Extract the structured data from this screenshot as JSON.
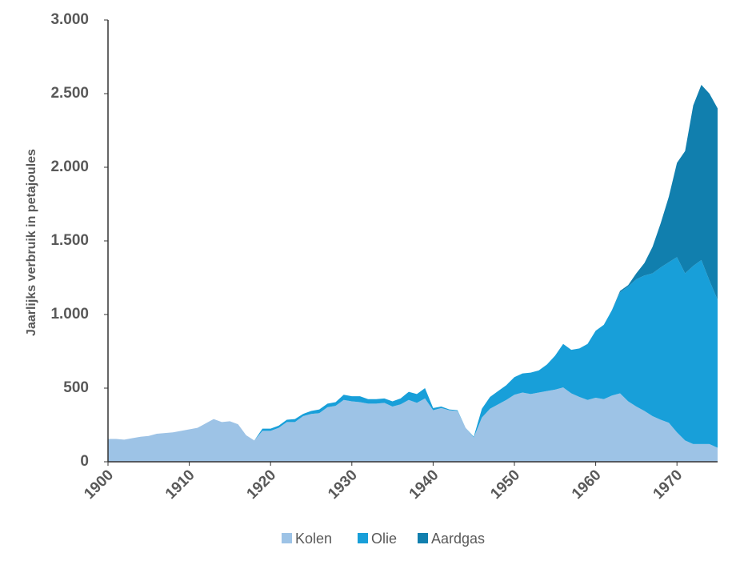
{
  "chart_data": {
    "type": "stacked_area",
    "ylabel": "Jaarlijks verbruik in petajoules",
    "x": [
      1900,
      1901,
      1902,
      1903,
      1904,
      1905,
      1906,
      1907,
      1908,
      1909,
      1910,
      1911,
      1912,
      1913,
      1914,
      1915,
      1916,
      1917,
      1918,
      1919,
      1920,
      1921,
      1922,
      1923,
      1924,
      1925,
      1926,
      1927,
      1928,
      1929,
      1930,
      1931,
      1932,
      1933,
      1934,
      1935,
      1936,
      1937,
      1938,
      1939,
      1940,
      1941,
      1942,
      1943,
      1944,
      1945,
      1946,
      1947,
      1948,
      1949,
      1950,
      1951,
      1952,
      1953,
      1954,
      1955,
      1956,
      1957,
      1958,
      1959,
      1960,
      1961,
      1962,
      1963,
      1964,
      1965,
      1966,
      1967,
      1968,
      1969,
      1970,
      1971,
      1972,
      1973,
      1974,
      1975
    ],
    "series": [
      {
        "name": "Kolen",
        "color": "#9dc3e6",
        "values": [
          155,
          155,
          150,
          160,
          170,
          175,
          190,
          195,
          200,
          210,
          220,
          230,
          260,
          290,
          270,
          275,
          255,
          180,
          145,
          210,
          210,
          230,
          270,
          270,
          310,
          325,
          330,
          370,
          380,
          420,
          410,
          405,
          395,
          395,
          400,
          375,
          390,
          420,
          400,
          430,
          350,
          365,
          350,
          345,
          230,
          165,
          300,
          360,
          390,
          420,
          455,
          470,
          460,
          470,
          480,
          490,
          505,
          465,
          440,
          420,
          435,
          425,
          450,
          465,
          410,
          375,
          345,
          310,
          285,
          265,
          200,
          145,
          120,
          120,
          120,
          95
        ]
      },
      {
        "name": "Olie",
        "color": "#189fd9",
        "values": [
          0,
          0,
          0,
          0,
          0,
          0,
          0,
          0,
          0,
          0,
          0,
          0,
          0,
          0,
          0,
          0,
          0,
          0,
          0,
          15,
          15,
          15,
          15,
          20,
          15,
          20,
          25,
          25,
          25,
          35,
          35,
          40,
          30,
          30,
          30,
          35,
          40,
          55,
          60,
          70,
          15,
          10,
          5,
          5,
          0,
          5,
          60,
          80,
          90,
          100,
          120,
          130,
          145,
          150,
          180,
          230,
          295,
          295,
          330,
          380,
          455,
          505,
          580,
          685,
          780,
          865,
          920,
          970,
          1035,
          1090,
          1190,
          1135,
          1210,
          1250,
          1110,
          1005
        ]
      },
      {
        "name": "Aardgas",
        "color": "#117fae",
        "values": [
          0,
          0,
          0,
          0,
          0,
          0,
          0,
          0,
          0,
          0,
          0,
          0,
          0,
          0,
          0,
          0,
          0,
          0,
          0,
          0,
          0,
          0,
          0,
          0,
          0,
          0,
          0,
          0,
          0,
          0,
          0,
          0,
          0,
          0,
          0,
          0,
          0,
          0,
          0,
          0,
          0,
          0,
          0,
          0,
          0,
          0,
          0,
          0,
          0,
          0,
          0,
          0,
          0,
          0,
          0,
          0,
          0,
          0,
          0,
          0,
          0,
          0,
          0,
          10,
          10,
          40,
          85,
          180,
          300,
          445,
          640,
          830,
          1090,
          1190,
          1270,
          1300
        ]
      }
    ],
    "xlim": [
      1900,
      1975
    ],
    "xticks": [
      1900,
      1910,
      1920,
      1930,
      1940,
      1950,
      1960,
      1970
    ],
    "ylim": [
      0,
      3000
    ],
    "yticks": [
      0,
      500,
      {
        "value": 1000,
        "label": "1.000"
      },
      {
        "value": 1500,
        "label": "1.500"
      },
      {
        "value": 2000,
        "label": "2.000"
      },
      {
        "value": 2500,
        "label": "2.500"
      },
      {
        "value": 3000,
        "label": "3.000"
      }
    ],
    "legend": "bottom"
  }
}
